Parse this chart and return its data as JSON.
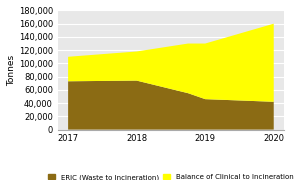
{
  "years": [
    2017,
    2018,
    2018.75,
    2019,
    2020
  ],
  "eric": [
    73000,
    74000,
    55000,
    46000,
    42000
  ],
  "balance": [
    37000,
    44000,
    75000,
    84000,
    118000
  ],
  "eric_color": "#8B6B14",
  "balance_color": "#FFFF00",
  "ylabel": "Tonnes",
  "ylim": [
    0,
    180000
  ],
  "yticks": [
    0,
    20000,
    40000,
    60000,
    80000,
    100000,
    120000,
    140000,
    160000,
    180000
  ],
  "xlim": [
    2016.85,
    2020.15
  ],
  "xticks": [
    2017,
    2018,
    2019,
    2020
  ],
  "legend_eric": "ERIC (Waste to Incineration)",
  "legend_balance": "Balance of Clinical to Incineration",
  "plot_bg_color": "#e8e8e8",
  "grid_color": "#ffffff"
}
